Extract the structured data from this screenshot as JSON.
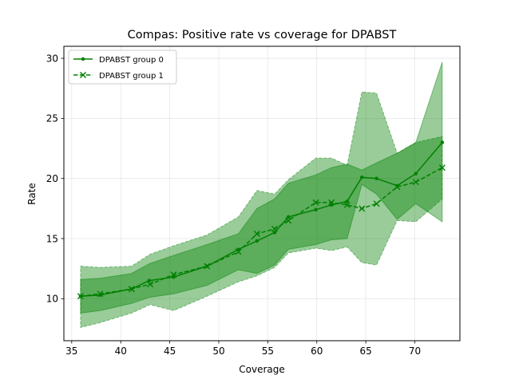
{
  "chart_data": {
    "type": "line",
    "title": "Compas: Positive rate vs coverage for DPABST",
    "xlabel": "Coverage",
    "ylabel": "Rate",
    "xlim": [
      34.2,
      74.6
    ],
    "ylim": [
      6.5,
      31.0
    ],
    "xticks": [
      35,
      40,
      45,
      50,
      55,
      60,
      65,
      70
    ],
    "yticks": [
      10,
      15,
      20,
      25,
      30
    ],
    "grid": true,
    "legend_position": "upper-left",
    "series": [
      {
        "name": "DPABST group 0",
        "color": "#008000",
        "linestyle": "solid",
        "marker": "dot",
        "x": [
          35.9,
          37.9,
          41.1,
          42.9,
          45.4,
          48.8,
          52.0,
          53.9,
          55.7,
          57.1,
          59.9,
          61.5,
          63.1,
          64.6,
          66.1,
          68.2,
          70.1,
          72.8
        ],
        "y": [
          10.2,
          10.3,
          10.8,
          11.5,
          11.8,
          12.7,
          14.1,
          14.8,
          15.5,
          16.8,
          17.4,
          17.8,
          18.1,
          20.1,
          20.0,
          19.4,
          20.4,
          23.0
        ],
        "band_upper": [
          11.6,
          11.7,
          12.1,
          12.9,
          13.6,
          14.5,
          15.4,
          17.5,
          18.3,
          19.6,
          20.3,
          20.9,
          21.2,
          20.7,
          21.3,
          22.1,
          23.0,
          29.7
        ],
        "band_lower": [
          8.8,
          9.0,
          9.6,
          10.1,
          10.4,
          11.1,
          12.4,
          12.1,
          12.8,
          14.1,
          14.5,
          14.9,
          15.0,
          19.5,
          18.7,
          16.6,
          17.9,
          16.4
        ]
      },
      {
        "name": "DPABST group 1",
        "color": "#008000",
        "linestyle": "dashed",
        "marker": "x",
        "x": [
          35.9,
          37.9,
          41.1,
          43.0,
          45.4,
          48.8,
          52.0,
          53.9,
          55.7,
          57.1,
          59.9,
          61.5,
          63.1,
          64.6,
          66.1,
          68.2,
          70.1,
          72.8
        ],
        "y": [
          10.2,
          10.4,
          10.8,
          11.2,
          12.0,
          12.7,
          13.9,
          15.4,
          15.8,
          16.5,
          18.0,
          18.0,
          17.8,
          17.5,
          17.9,
          19.3,
          19.7,
          20.9
        ],
        "band_upper": [
          12.7,
          12.6,
          12.7,
          13.7,
          14.4,
          15.3,
          16.8,
          19.0,
          18.7,
          19.9,
          21.7,
          21.7,
          21.1,
          27.2,
          27.1,
          22.1,
          23.0,
          23.5
        ],
        "band_lower": [
          7.6,
          8.0,
          8.8,
          9.5,
          9.0,
          10.2,
          11.4,
          11.9,
          12.6,
          13.8,
          14.2,
          14.0,
          14.3,
          13.0,
          12.8,
          16.5,
          16.4,
          18.3
        ]
      }
    ]
  }
}
